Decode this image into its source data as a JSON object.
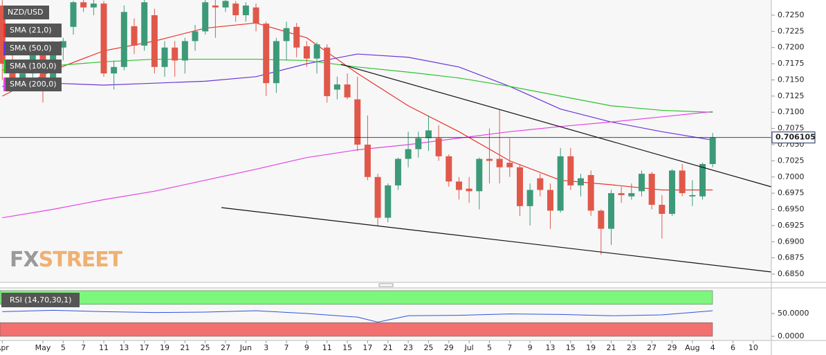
{
  "chart_data": [
    {
      "type": "candlestick",
      "title": "NZD/USD",
      "categories": [
        "Apr",
        null,
        null,
        null,
        "May",
        null,
        "5",
        null,
        "7",
        null,
        "11",
        null,
        "13",
        null,
        "17",
        null,
        "19",
        null,
        "21",
        null,
        "25",
        null,
        "27",
        null,
        "Jun",
        null,
        "3",
        null,
        "7",
        null,
        "9",
        null,
        "11",
        null,
        "15",
        null,
        "17",
        null,
        "21",
        null,
        "23",
        null,
        "25",
        null,
        "29",
        null,
        "Jul",
        null,
        "5",
        null,
        "7",
        null,
        "9",
        null,
        "13",
        null,
        "15",
        null,
        "19",
        null,
        "21",
        null,
        "23",
        null,
        "27",
        null,
        "29",
        null,
        "Aug",
        null,
        "4",
        null,
        "6",
        null,
        "10"
      ],
      "open": [
        0.7265,
        0.7175,
        0.715,
        0.716,
        0.719,
        0.715,
        0.72,
        0.7232,
        0.727,
        0.7262,
        0.7268,
        0.716,
        0.717,
        0.7233,
        0.7203,
        0.725,
        0.717,
        0.72,
        0.718,
        0.721,
        0.7225,
        0.7265,
        0.7262,
        0.7268,
        0.725,
        0.7262,
        0.7237,
        0.7145,
        0.721,
        0.7232,
        0.7202,
        0.7183,
        0.72,
        0.7135,
        0.7143,
        0.712,
        0.705,
        0.7,
        0.6937,
        0.6987,
        0.7028,
        0.7043,
        0.706,
        0.706,
        0.7032,
        0.6993,
        0.6982,
        0.6978,
        0.7028,
        0.7028,
        0.7022,
        0.7015,
        0.6955,
        0.6998,
        0.698,
        0.6948,
        0.7032,
        0.6987,
        0.7003,
        0.6948,
        0.692,
        0.6975,
        0.697,
        0.6978,
        0.7005,
        0.6957,
        0.6943,
        0.701,
        0.697,
        0.697,
        0.702,
        null,
        null,
        null,
        null
      ],
      "high": [
        0.7274,
        0.719,
        0.7175,
        0.72,
        0.72,
        0.721,
        0.7215,
        0.7272,
        0.7274,
        0.7274,
        0.7272,
        0.718,
        0.7265,
        0.7245,
        0.7274,
        0.726,
        0.721,
        0.721,
        0.7215,
        0.7235,
        0.7274,
        0.7274,
        0.7274,
        0.7272,
        0.727,
        0.7268,
        0.724,
        0.7215,
        0.724,
        0.7238,
        0.721,
        0.7208,
        0.7205,
        0.7155,
        0.716,
        0.7155,
        0.7095,
        0.7005,
        0.699,
        0.703,
        0.707,
        0.707,
        0.7095,
        0.708,
        0.7035,
        0.7,
        0.7,
        0.703,
        0.7075,
        0.7105,
        0.706,
        0.702,
        0.699,
        0.7005,
        0.699,
        0.7045,
        0.7045,
        0.7005,
        0.701,
        0.695,
        0.698,
        0.6985,
        0.699,
        0.701,
        0.7008,
        0.6972,
        0.7012,
        0.702,
        0.6995,
        0.7022,
        0.7068,
        null,
        null,
        null,
        null
      ],
      "low": [
        0.715,
        0.714,
        0.7135,
        0.715,
        0.7115,
        0.714,
        0.718,
        0.722,
        0.7255,
        0.725,
        0.7155,
        0.7135,
        0.7165,
        0.719,
        0.7195,
        0.716,
        0.7155,
        0.7155,
        0.716,
        0.7195,
        0.722,
        0.7215,
        0.7255,
        0.724,
        0.724,
        0.7225,
        0.7125,
        0.713,
        0.718,
        0.7185,
        0.717,
        0.716,
        0.7115,
        0.712,
        0.712,
        0.704,
        0.6995,
        0.6925,
        0.693,
        0.698,
        0.7015,
        0.703,
        0.704,
        0.7025,
        0.6985,
        0.6965,
        0.696,
        0.695,
        0.699,
        0.699,
        0.7,
        0.694,
        0.6925,
        0.697,
        0.692,
        0.6945,
        0.698,
        0.697,
        0.694,
        0.688,
        0.6895,
        0.696,
        0.6965,
        0.697,
        0.695,
        0.6905,
        0.694,
        0.697,
        0.6955,
        0.6965,
        0.7015,
        null,
        null,
        null,
        null
      ],
      "close": [
        0.7175,
        0.715,
        0.716,
        0.719,
        0.715,
        0.72,
        0.721,
        0.727,
        0.7262,
        0.7268,
        0.716,
        0.717,
        0.7255,
        0.7203,
        0.727,
        0.717,
        0.72,
        0.718,
        0.721,
        0.7225,
        0.727,
        0.7262,
        0.7272,
        0.725,
        0.7265,
        0.7237,
        0.7145,
        0.721,
        0.723,
        0.72,
        0.7183,
        0.7205,
        0.7125,
        0.7143,
        0.7123,
        0.705,
        0.7,
        0.6937,
        0.6987,
        0.7028,
        0.7043,
        0.706,
        0.7072,
        0.7032,
        0.6993,
        0.698,
        0.6978,
        0.7028,
        0.7025,
        0.7015,
        0.7015,
        0.6955,
        0.698,
        0.698,
        0.6948,
        0.7032,
        0.6987,
        0.6998,
        0.6948,
        0.692,
        0.6975,
        0.6972,
        0.6975,
        0.7005,
        0.6957,
        0.6943,
        0.701,
        0.6975,
        0.6972,
        0.702,
        0.7061,
        null,
        null,
        null,
        null
      ],
      "up_color": "#3d9a78",
      "down_color": "#e0584a",
      "ylim": [
        0.68372,
        0.72735
      ],
      "yticks": [
        {
          "value": 0.685,
          "label": "0.6850"
        },
        {
          "value": 0.6875,
          "label": "0.6875"
        },
        {
          "value": 0.69,
          "label": "0.6900"
        },
        {
          "value": 0.6925,
          "label": "0.6925"
        },
        {
          "value": 0.695,
          "label": "0.6950"
        },
        {
          "value": 0.6975,
          "label": "0.6975"
        },
        {
          "value": 0.7,
          "label": "0.7000"
        },
        {
          "value": 0.7025,
          "label": "0.7025"
        },
        {
          "value": 0.705,
          "label": "0.7050"
        },
        {
          "value": 0.7075,
          "label": "0.7075"
        },
        {
          "value": 0.71,
          "label": "0.7100"
        },
        {
          "value": 0.7125,
          "label": "0.7125"
        },
        {
          "value": 0.715,
          "label": "0.7150"
        },
        {
          "value": 0.7175,
          "label": "0.7175"
        },
        {
          "value": 0.72,
          "label": "0.7200"
        },
        {
          "value": 0.7225,
          "label": "0.7225"
        },
        {
          "value": 0.725,
          "label": "0.7250"
        }
      ],
      "last_price": 0.706105,
      "lines": [
        {
          "name": "SMA (21,0)",
          "color": "#e8322a",
          "x": [
            0,
            5,
            10,
            15,
            20,
            25,
            30,
            35,
            40,
            45,
            50,
            55,
            60,
            65,
            70
          ],
          "values": [
            0.7125,
            0.7165,
            0.7195,
            0.721,
            0.723,
            0.7238,
            0.7215,
            0.716,
            0.711,
            0.707,
            0.7025,
            0.6995,
            0.6988,
            0.698,
            0.698
          ]
        },
        {
          "name": "SMA (50,0)",
          "color": "#6a35d8",
          "x": [
            0,
            5,
            10,
            15,
            20,
            25,
            30,
            35,
            40,
            45,
            50,
            55,
            60,
            65,
            70
          ],
          "values": [
            0.714,
            0.7145,
            0.7142,
            0.7145,
            0.7148,
            0.7155,
            0.7175,
            0.719,
            0.7185,
            0.717,
            0.714,
            0.7105,
            0.7085,
            0.707,
            0.7057
          ]
        },
        {
          "name": "SMA (100,0)",
          "color": "#2cc22c",
          "x": [
            0,
            5,
            10,
            15,
            20,
            25,
            30,
            35,
            40,
            45,
            50,
            55,
            60,
            65,
            70
          ],
          "values": [
            0.7165,
            0.7172,
            0.7178,
            0.7182,
            0.7182,
            0.7182,
            0.718,
            0.717,
            0.7162,
            0.7153,
            0.714,
            0.7125,
            0.711,
            0.7103,
            0.71
          ]
        },
        {
          "name": "SMA (200,0)",
          "color": "#e444e4",
          "x": [
            0,
            5,
            10,
            15,
            20,
            25,
            30,
            35,
            40,
            45,
            50,
            55,
            60,
            65,
            70
          ],
          "values": [
            0.6937,
            0.695,
            0.6965,
            0.6978,
            0.6995,
            0.7012,
            0.703,
            0.7042,
            0.705,
            0.706,
            0.707,
            0.7078,
            0.7085,
            0.7093,
            0.7101
          ]
        }
      ],
      "watermark": {
        "prefix": "FX",
        "suffix": "STREET"
      }
    },
    {
      "type": "line",
      "title": "RSI (14,70,30,1)",
      "x": [
        0,
        5,
        10,
        15,
        20,
        25,
        30,
        35,
        37,
        40,
        45,
        50,
        55,
        60,
        65,
        70
      ],
      "series": [
        {
          "color": "#3050e0",
          "values": [
            54,
            57,
            54,
            52,
            53,
            56,
            50,
            42,
            31,
            45,
            46,
            49,
            48,
            45,
            47,
            56
          ]
        }
      ],
      "ylim": [
        0,
        100
      ],
      "yticks": [
        {
          "value": 0,
          "label": "0.0000"
        },
        {
          "value": 50,
          "label": "50.0000"
        }
      ],
      "bands": [
        {
          "from": 70,
          "to": 100,
          "color": "#7cf77c"
        },
        {
          "from": 0,
          "to": 30,
          "color": "#f27070"
        }
      ]
    }
  ]
}
